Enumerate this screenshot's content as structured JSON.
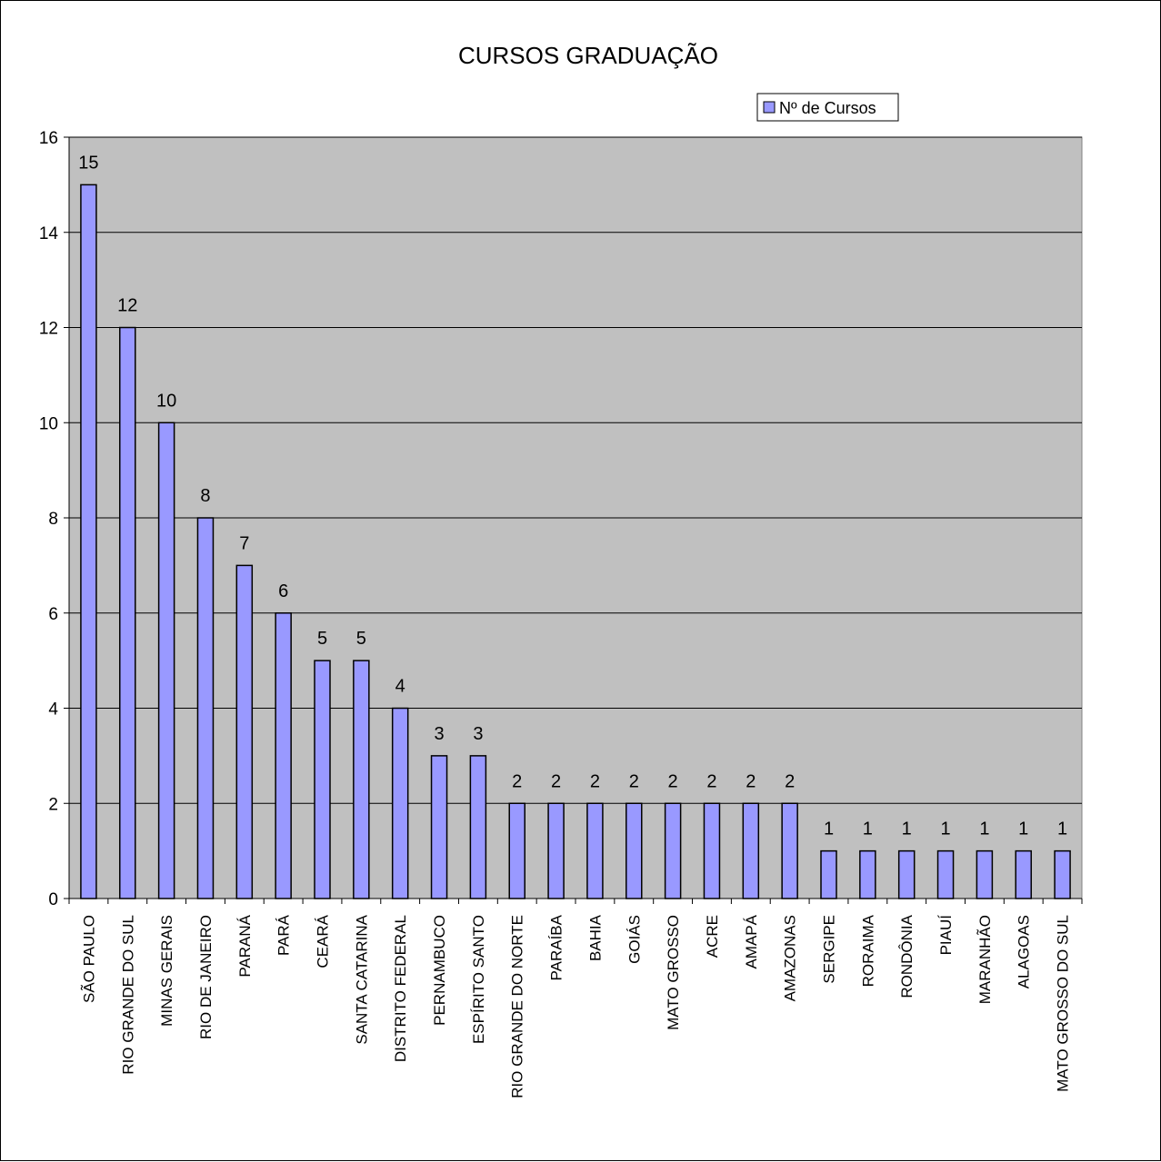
{
  "chart_data": {
    "type": "bar",
    "title": "CURSOS GRADUAÇÃO",
    "xlabel": "",
    "ylabel": "",
    "ylim": [
      0,
      16
    ],
    "yticks": [
      0,
      2,
      4,
      6,
      8,
      10,
      12,
      14,
      16
    ],
    "grid": true,
    "legend_position": "top-right",
    "categories": [
      "SÃO PAULO",
      "RIO GRANDE DO SUL",
      "MINAS GERAIS",
      "RIO DE JANEIRO",
      "PARANÁ",
      "PARÁ",
      "CEARÁ",
      "SANTA CATARINA",
      "DISTRITO FEDERAL",
      "PERNAMBUCO",
      "ESPÍRITO SANTO",
      "RIO GRANDE DO NORTE",
      "PARAÍBA",
      "BAHIA",
      "GOIÁS",
      "MATO GROSSO",
      "ACRE",
      "AMAPÁ",
      "AMAZONAS",
      "SERGIPE",
      "RORAIMA",
      "RONDÔNIA",
      "PIAUÍ",
      "MARANHÃO",
      "ALAGOAS",
      "MATO GROSSO DO SUL"
    ],
    "series": [
      {
        "name": "Nº de Cursos",
        "values": [
          15,
          12,
          10,
          8,
          7,
          6,
          5,
          5,
          4,
          3,
          3,
          2,
          2,
          2,
          2,
          2,
          2,
          2,
          2,
          1,
          1,
          1,
          1,
          1,
          1,
          1
        ]
      }
    ],
    "colors": {
      "bar_fill": "#9999ff",
      "bar_stroke": "#000000",
      "plot_background": "#c0c0c0",
      "gridline": "#000000"
    }
  }
}
